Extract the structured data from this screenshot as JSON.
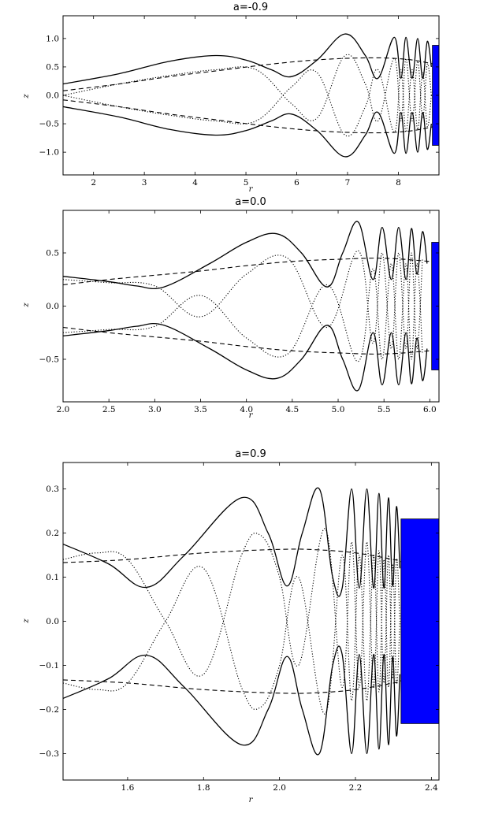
{
  "chart_data": [
    {
      "type": "line",
      "title": "a=-0.9",
      "xlabel": "r",
      "ylabel": "z",
      "xlim": [
        1.4,
        8.8
      ],
      "ylim": [
        -1.4,
        1.4
      ],
      "xticks": [
        2,
        3,
        4,
        5,
        6,
        7,
        8
      ],
      "xtick_labels": [
        "2",
        "3",
        "4",
        "5",
        "6",
        "7",
        "8"
      ],
      "yticks": [
        -1.0,
        -0.5,
        0.0,
        0.5,
        1.0
      ],
      "ytick_labels": [
        "−1.0",
        "−0.5",
        "0.0",
        "0.5",
        "1.0"
      ],
      "grid": false,
      "disk": {
        "r_start": 8.67,
        "r_end": 8.8,
        "z_top": 0.88,
        "z_bottom": -0.88,
        "color": "#0000ff"
      },
      "series": [
        {
          "style": "solid",
          "symmetric": true,
          "x": [
            1.4,
            2.5,
            3.5,
            4.4,
            5.0,
            5.5,
            5.9,
            6.4,
            6.95,
            7.35,
            7.6,
            7.92,
            8.05,
            8.15,
            8.27,
            8.38,
            8.48,
            8.57,
            8.65
          ],
          "y": [
            0.2,
            0.38,
            0.6,
            0.7,
            0.62,
            0.45,
            0.33,
            0.62,
            1.08,
            0.7,
            0.3,
            1.02,
            0.3,
            1.02,
            0.3,
            1.0,
            0.3,
            0.95,
            0.5
          ]
        },
        {
          "style": "dashed",
          "symmetric": true,
          "x": [
            1.4,
            2.5,
            3.5,
            4.5,
            5.5,
            6.5,
            7.5,
            8.2,
            8.7
          ],
          "y": [
            0.08,
            0.2,
            0.33,
            0.44,
            0.55,
            0.63,
            0.66,
            0.63,
            0.55
          ]
        },
        {
          "style": "dotted",
          "symmetric": true,
          "x": [
            1.4,
            2.5,
            3.5,
            4.4,
            5.2,
            5.9,
            6.4,
            6.95,
            7.35,
            7.6,
            7.92,
            8.05,
            8.15,
            8.27,
            8.38,
            8.48,
            8.57,
            8.65
          ],
          "y": [
            0.0,
            0.2,
            0.35,
            0.45,
            0.45,
            -0.15,
            -0.4,
            0.7,
            0.2,
            -0.45,
            0.65,
            -0.45,
            0.65,
            -0.45,
            0.6,
            -0.4,
            0.55,
            0.0
          ]
        }
      ]
    },
    {
      "type": "line",
      "title": "a=0.0",
      "xlabel": "r",
      "ylabel": "z",
      "xlim": [
        2.0,
        6.1
      ],
      "ylim": [
        -0.9,
        0.9
      ],
      "xticks": [
        2.0,
        2.5,
        3.0,
        3.5,
        4.0,
        4.5,
        5.0,
        5.5,
        6.0
      ],
      "xtick_labels": [
        "2.0",
        "2.5",
        "3.0",
        "3.5",
        "4.0",
        "4.5",
        "5.0",
        "5.5",
        "6.0"
      ],
      "yticks": [
        -0.5,
        0.0,
        0.5
      ],
      "ytick_labels": [
        "−0.5",
        "0.0",
        "0.5"
      ],
      "grid": false,
      "disk": {
        "r_start": 6.02,
        "r_end": 6.1,
        "z_top": 0.6,
        "z_bottom": -0.6,
        "color": "#0000ff"
      },
      "series": [
        {
          "style": "solid",
          "symmetric": true,
          "x": [
            2.0,
            2.5,
            2.8,
            3.1,
            3.6,
            4.0,
            4.33,
            4.6,
            4.88,
            5.05,
            5.22,
            5.38,
            5.48,
            5.58,
            5.66,
            5.74,
            5.8,
            5.86,
            5.92,
            5.97
          ],
          "y": [
            0.28,
            0.23,
            0.19,
            0.18,
            0.4,
            0.6,
            0.68,
            0.5,
            0.18,
            0.5,
            0.79,
            0.25,
            0.74,
            0.25,
            0.74,
            0.25,
            0.73,
            0.3,
            0.7,
            0.4
          ]
        },
        {
          "style": "dashed",
          "symmetric": true,
          "x": [
            2.0,
            2.5,
            3.0,
            3.5,
            4.0,
            4.5,
            5.0,
            5.5,
            6.0
          ],
          "y": [
            0.2,
            0.25,
            0.29,
            0.33,
            0.38,
            0.42,
            0.44,
            0.45,
            0.42
          ]
        },
        {
          "style": "dotted",
          "symmetric": true,
          "x": [
            2.0,
            2.5,
            3.0,
            3.5,
            4.0,
            4.45,
            4.88,
            5.22,
            5.38,
            5.48,
            5.58,
            5.66,
            5.74,
            5.8,
            5.86,
            5.92
          ],
          "y": [
            0.25,
            0.22,
            0.19,
            -0.1,
            0.3,
            0.45,
            -0.2,
            0.52,
            -0.35,
            0.5,
            -0.4,
            0.5,
            -0.4,
            0.5,
            -0.4,
            0.45
          ]
        }
      ]
    },
    {
      "type": "line",
      "title": "a=0.9",
      "xlabel": "r",
      "ylabel": "z",
      "xlim": [
        1.43,
        2.42
      ],
      "ylim": [
        -0.36,
        0.36
      ],
      "xticks": [
        1.6,
        1.8,
        2.0,
        2.2,
        2.4
      ],
      "xtick_labels": [
        "1.6",
        "1.8",
        "2.0",
        "2.2",
        "2.4"
      ],
      "yticks": [
        -0.3,
        -0.2,
        -0.1,
        0.0,
        0.1,
        0.2,
        0.3
      ],
      "ytick_labels": [
        "−0.3",
        "−0.2",
        "−0.1",
        "0.0",
        "0.1",
        "0.2",
        "0.3"
      ],
      "grid": false,
      "disk": {
        "r_start": 2.32,
        "r_end": 2.42,
        "z_top": 0.232,
        "z_bottom": -0.232,
        "color": "#0000ff"
      },
      "series": [
        {
          "style": "solid",
          "symmetric": true,
          "x": [
            1.43,
            1.55,
            1.65,
            1.75,
            1.9,
            1.97,
            2.02,
            2.06,
            2.105,
            2.14,
            2.165,
            2.19,
            2.21,
            2.23,
            2.248,
            2.262,
            2.275,
            2.287,
            2.298,
            2.308,
            2.317
          ],
          "y": [
            0.175,
            0.13,
            0.077,
            0.15,
            0.28,
            0.2,
            0.08,
            0.2,
            0.3,
            0.1,
            0.075,
            0.3,
            0.075,
            0.3,
            0.075,
            0.29,
            0.075,
            0.28,
            0.08,
            0.26,
            0.12
          ]
        },
        {
          "style": "dashed",
          "symmetric": true,
          "x": [
            1.43,
            1.6,
            1.8,
            2.0,
            2.1,
            2.2,
            2.3,
            2.32
          ],
          "y": [
            0.133,
            0.14,
            0.155,
            0.163,
            0.162,
            0.155,
            0.14,
            0.135
          ]
        },
        {
          "style": "dotted",
          "symmetric": true,
          "x": [
            1.43,
            1.52,
            1.6,
            1.7,
            1.8,
            1.9,
            1.95,
            2.0,
            2.05,
            2.12,
            2.165,
            2.19,
            2.21,
            2.23,
            2.248,
            2.262,
            2.275,
            2.287,
            2.298,
            2.308,
            2.317
          ],
          "y": [
            0.14,
            0.155,
            0.14,
            0.0,
            -0.12,
            0.15,
            0.195,
            0.1,
            -0.1,
            0.21,
            -0.15,
            0.18,
            -0.15,
            0.18,
            -0.15,
            0.16,
            -0.14,
            0.15,
            -0.13,
            0.14,
            0.0
          ]
        }
      ]
    }
  ]
}
